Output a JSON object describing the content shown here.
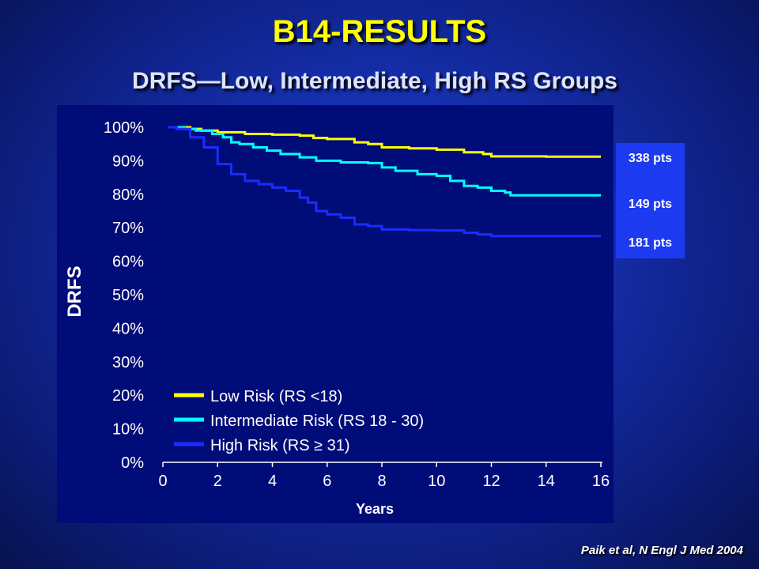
{
  "slide": {
    "title": "B14-RESULTS",
    "subtitle": "DRFS—Low, Intermediate, High RS Groups",
    "citation": "Paik et al, N Engl J Med 2004"
  },
  "patients": [
    {
      "label": "338 pts",
      "color": "#ffffff"
    },
    {
      "label": "149 pts",
      "color": "#ffffff"
    },
    {
      "label": "181 pts",
      "color": "#ffffff"
    }
  ],
  "chart_data": {
    "type": "line",
    "title": "",
    "xlabel": "Years",
    "ylabel": "DRFS",
    "xlim": [
      0,
      16
    ],
    "ylim": [
      0,
      100
    ],
    "xticks": [
      0,
      2,
      4,
      6,
      8,
      10,
      12,
      14,
      16
    ],
    "yticks": [
      0,
      10,
      20,
      30,
      40,
      50,
      60,
      70,
      80,
      90,
      100
    ],
    "ytick_labels": [
      "0%",
      "10%",
      "20%",
      "30%",
      "40%",
      "50%",
      "60%",
      "70%",
      "80%",
      "90%",
      "100%"
    ],
    "grid": false,
    "legend_position": "bottom-left",
    "series": [
      {
        "name": "Low Risk (RS <18)",
        "color": "#ffff00",
        "x": [
          0.2,
          1.0,
          1.4,
          2.0,
          3.0,
          4.0,
          5.0,
          5.5,
          6.0,
          7.0,
          7.5,
          8.0,
          9.0,
          10.0,
          11.0,
          11.7,
          12.0,
          14.0,
          16.0
        ],
        "y": [
          100,
          99.5,
          99,
          98.5,
          98,
          97.8,
          97.5,
          96.8,
          96.5,
          95.5,
          95,
          94,
          93.7,
          93.3,
          92.5,
          92,
          91.3,
          91.2,
          91.2
        ]
      },
      {
        "name": "Intermediate Risk (RS 18 - 30)",
        "color": "#00ffff",
        "x": [
          0.2,
          0.8,
          1.2,
          1.8,
          2.2,
          2.5,
          2.8,
          3.3,
          3.8,
          4.3,
          5.0,
          5.6,
          6.5,
          7.5,
          8.0,
          8.5,
          9.3,
          10.0,
          10.5,
          11.0,
          11.5,
          12.0,
          12.5,
          12.7,
          16.0
        ],
        "y": [
          100,
          99.5,
          99,
          98,
          97,
          95.5,
          95,
          94,
          93,
          92,
          91,
          90,
          89.5,
          89.3,
          88,
          87,
          86,
          85.5,
          84,
          82.5,
          82,
          81,
          80.5,
          79.7,
          79.7
        ]
      },
      {
        "name": "High Risk (RS ≥ 31)",
        "color": "#1a2cff",
        "x": [
          0.2,
          0.5,
          1.0,
          1.5,
          2.0,
          2.5,
          3.0,
          3.5,
          4.0,
          4.5,
          5.0,
          5.3,
          5.6,
          6.0,
          6.5,
          7.0,
          7.5,
          8.0,
          9.0,
          10.0,
          11.0,
          11.5,
          12.0,
          16.0
        ],
        "y": [
          100,
          99.5,
          97,
          94,
          89,
          86,
          84,
          83,
          82,
          81,
          79,
          77.5,
          75,
          74,
          73,
          71,
          70.5,
          69.5,
          69.3,
          69.2,
          68.5,
          68,
          67.5,
          67.5
        ]
      }
    ],
    "legend": {
      "entries": [
        "Low Risk (RS <18)",
        "Intermediate Risk (RS 18 - 30)",
        "High Risk (RS ≥ 31)"
      ]
    }
  }
}
